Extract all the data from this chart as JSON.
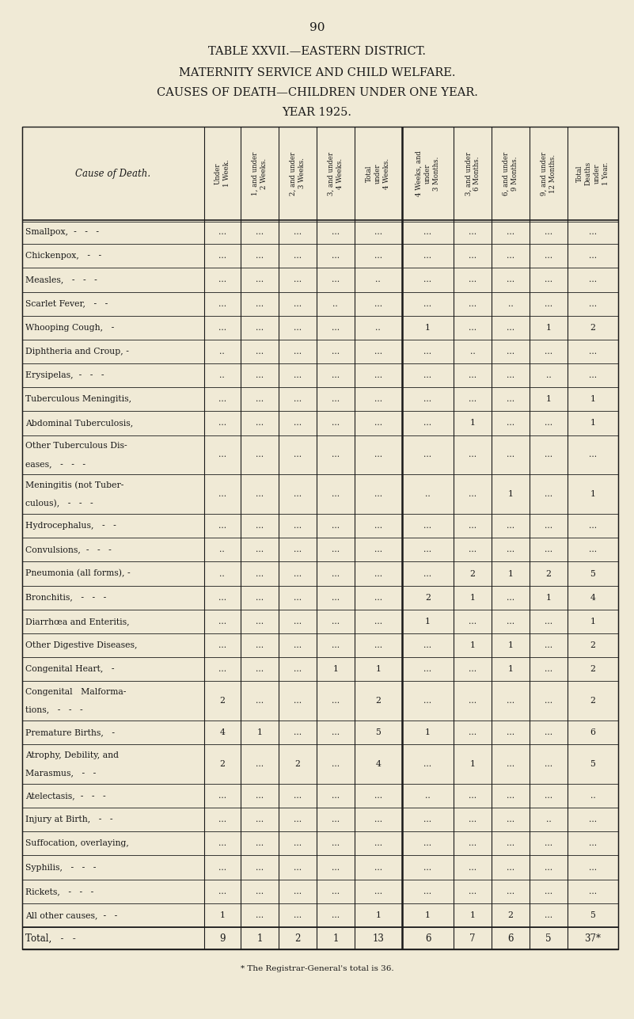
{
  "page_number": "90",
  "title_lines": [
    "TABLE XXVII.—EASTERN DISTRICT.",
    "MATERNITY SERVICE AND CHILD WELFARE.",
    "CAUSES OF DEATH—CHILDREN UNDER ONE YEAR.",
    "YEAR 1925."
  ],
  "col_headers": [
    "Under\n1 Week.",
    "1, and under\n2 Weeks.",
    "2, and under\n3 Weeks.",
    "3, and under\n4 Weeks.",
    "Total\nunder\n4 Weeks.",
    "4 Weeks, and\nunder\n3 Months.",
    "3, and under\n6 Months.",
    "6, and under\n9 Months.",
    "9, and under\n12 Months.",
    "Total\nDeaths\nunder\n1 Year."
  ],
  "row_header": "Cause of Death.",
  "rows": [
    [
      "Smallpox,  -   -   -",
      "...",
      "...",
      "...",
      "...",
      "...",
      "...",
      "...",
      "...",
      "...",
      "..."
    ],
    [
      "Chickenpox,   -   -",
      "...",
      "...",
      "...",
      "...",
      "...",
      "...",
      "...",
      "...",
      "...",
      "..."
    ],
    [
      "Measles,   -   -   -",
      "...",
      "...",
      "...",
      "...",
      "..",
      "...",
      "...",
      "...",
      "...",
      "..."
    ],
    [
      "Scarlet Fever,   -   -",
      "...",
      "...",
      "...",
      "..",
      "...",
      "...",
      "...",
      "..",
      "...",
      "..."
    ],
    [
      "Whooping Cough,   -",
      "...",
      "...",
      "...",
      "...",
      "..",
      "1",
      "...",
      "...",
      "1",
      "2"
    ],
    [
      "Diphtheria and Croup, -",
      "..",
      "...",
      "...",
      "...",
      "...",
      "...",
      "..",
      "...",
      "...",
      "..."
    ],
    [
      "Erysipelas,  -   -   -",
      "..",
      "...",
      "...",
      "...",
      "...",
      "...",
      "...",
      "...",
      "..",
      "..."
    ],
    [
      "Tuberculous Meningitis,",
      "...",
      "...",
      "...",
      "...",
      "...",
      "...",
      "...",
      "...",
      "1",
      "1"
    ],
    [
      "Abdominal Tuberculosis,",
      "...",
      "...",
      "...",
      "...",
      "...",
      "...",
      "1",
      "...",
      "...",
      "1"
    ],
    [
      "Other Tuberculous Dis-\neases,   -   -   -",
      "...",
      "...",
      "...",
      "...",
      "...",
      "...",
      "...",
      "...",
      "...",
      "..."
    ],
    [
      "Meningitis (not Tuber-\nculous),   -   -   -",
      "...",
      "...",
      "...",
      "...",
      "...",
      "..",
      "...",
      "1",
      "...",
      "1"
    ],
    [
      "Hydrocephalus,   -   -",
      "...",
      "...",
      "...",
      "...",
      "...",
      "...",
      "...",
      "...",
      "...",
      "..."
    ],
    [
      "Convulsions,  -   -   -",
      "..",
      "...",
      "...",
      "...",
      "...",
      "...",
      "...",
      "...",
      "...",
      "..."
    ],
    [
      "Pneumonia (all forms), -",
      "..",
      "...",
      "...",
      "...",
      "...",
      "...",
      "2",
      "1",
      "2",
      "5"
    ],
    [
      "Bronchitis,   -   -   -",
      "...",
      "...",
      "...",
      "...",
      "...",
      "2",
      "1",
      "...",
      "1",
      "4"
    ],
    [
      "Diarrhœa and Enteritis,",
      "...",
      "...",
      "...",
      "...",
      "...",
      "1",
      "...",
      "...",
      "...",
      "1"
    ],
    [
      "Other Digestive Diseases,",
      "...",
      "...",
      "...",
      "...",
      "...",
      "...",
      "1",
      "1",
      "...",
      "2"
    ],
    [
      "Congenital Heart,   -",
      "...",
      "...",
      "...",
      "1",
      "1",
      "...",
      "...",
      "1",
      "...",
      "2"
    ],
    [
      "Congenital   Malforma-\ntions,   -   -   -",
      "2",
      "...",
      "...",
      "...",
      "2",
      "...",
      "...",
      "...",
      "...",
      "2"
    ],
    [
      "Premature Births,   -",
      "4",
      "1",
      "...",
      "...",
      "5",
      "1",
      "...",
      "...",
      "...",
      "6"
    ],
    [
      "Atrophy, Debility, and\nMarasmus,   -   -",
      "2",
      "...",
      "2",
      "...",
      "4",
      "...",
      "1",
      "...",
      "...",
      "5"
    ],
    [
      "Atelectasis,  -   -   -",
      "...",
      "...",
      "...",
      "...",
      "...",
      "..",
      "...",
      "...",
      "...",
      ".."
    ],
    [
      "Injury at Birth,   -   -",
      "...",
      "...",
      "...",
      "...",
      "...",
      "...",
      "...",
      "...",
      "..",
      "..."
    ],
    [
      "Suffocation, overlaying,",
      "...",
      "...",
      "...",
      "...",
      "...",
      "...",
      "...",
      "...",
      "...",
      "..."
    ],
    [
      "Syphilis,   -   -   -",
      "...",
      "...",
      "...",
      "...",
      "...",
      "...",
      "...",
      "...",
      "...",
      "..."
    ],
    [
      "Rickets,   -   -   -",
      "...",
      "...",
      "...",
      "...",
      "...",
      "...",
      "...",
      "...",
      "...",
      "..."
    ],
    [
      "All other causes,  -   -",
      "1",
      "...",
      "...",
      "...",
      "1",
      "1",
      "1",
      "2",
      "...",
      "5"
    ]
  ],
  "total_row": [
    "Total,   -   -",
    "9",
    "1",
    "2",
    "1",
    "13",
    "6",
    "7",
    "6",
    "5",
    "37*"
  ],
  "footnote": "* The Registrar-General's total is 36.",
  "bg_color": "#f0ead6",
  "text_color": "#1a1a1a",
  "line_color": "#1a1a1a"
}
